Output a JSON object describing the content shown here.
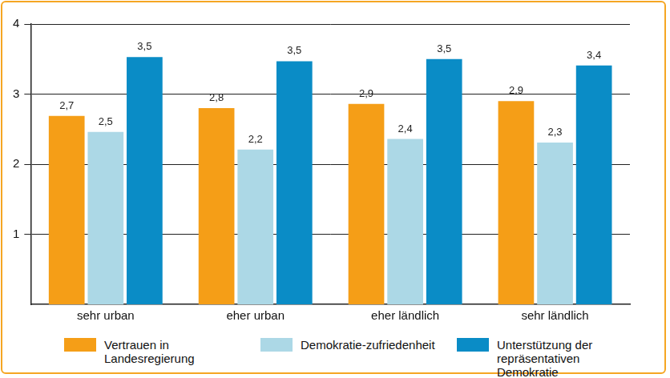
{
  "chart_data": {
    "type": "bar",
    "categories": [
      "sehr urban",
      "eher urban",
      "eher ländlich",
      "sehr ländlich"
    ],
    "series": [
      {
        "name": "Vertrauen in Landesregierung",
        "color": "#f59e17",
        "values": [
          2.69,
          2.8,
          2.86,
          2.9
        ],
        "value_labels": [
          "2,7",
          "2,8",
          "2,9",
          "2,9"
        ]
      },
      {
        "name": "Demokratie-zufriedenheit",
        "color": "#acd8e6",
        "values": [
          2.46,
          2.21,
          2.36,
          2.31
        ],
        "value_labels": [
          "2,5",
          "2,2",
          "2,4",
          "2,3"
        ]
      },
      {
        "name": "Unterstützung der repräsentativen Demokratie",
        "color": "#0a8cc6",
        "values": [
          3.53,
          3.47,
          3.5,
          3.41
        ],
        "value_labels": [
          "3,5",
          "3,5",
          "3,5",
          "3,4"
        ]
      }
    ],
    "ylim": [
      0,
      4
    ],
    "yticks": [
      1,
      2,
      3,
      4
    ],
    "grid": true,
    "legend": "bottom",
    "data_labels": true
  }
}
